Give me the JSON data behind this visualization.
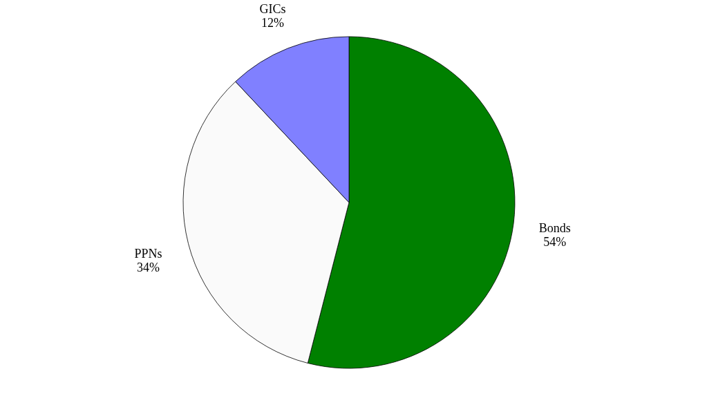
{
  "chart_data": {
    "type": "pie",
    "categories": [
      "Bonds",
      "PPNs",
      "GICs"
    ],
    "values": [
      54,
      34,
      12
    ],
    "value_labels": [
      "54%",
      "34%",
      "12%"
    ],
    "colors": [
      "#008000",
      "#fafafa",
      "#8080ff"
    ],
    "legend": false
  }
}
